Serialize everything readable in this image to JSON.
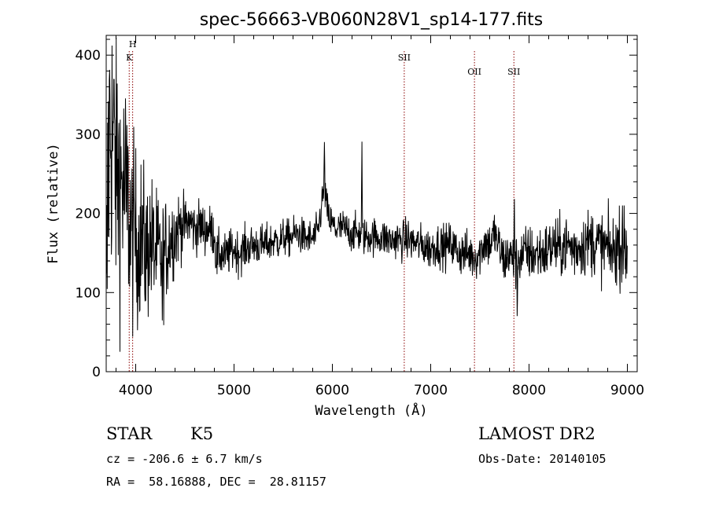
{
  "chart_data": {
    "type": "line",
    "title": "spec-56663-VB060N28V1_sp14-177.fits",
    "xlabel": "Wavelength (Å)",
    "ylabel": "Flux (relative)",
    "xlim": [
      3700,
      9100
    ],
    "ylim": [
      0,
      425
    ],
    "xticks": [
      4000,
      5000,
      6000,
      7000,
      8000,
      9000
    ],
    "yticks": [
      0,
      100,
      200,
      300,
      400
    ],
    "grid": false,
    "line_markers": [
      {
        "label": "K",
        "x": 3934
      },
      {
        "label": "H",
        "x": 3969
      },
      {
        "label": "SII",
        "x": 6731
      },
      {
        "label": "OII",
        "x": 7445
      },
      {
        "label": "SII",
        "x": 7846
      }
    ],
    "anchors": {
      "x": [
        3700,
        3720,
        3740,
        3760,
        3780,
        3800,
        3820,
        3850,
        3880,
        3900,
        3930,
        3960,
        3990,
        4020,
        4060,
        4100,
        4150,
        4200,
        4250,
        4300,
        4350,
        4400,
        4450,
        4500,
        4550,
        4600,
        4650,
        4700,
        4750,
        4800,
        4820,
        4850,
        4900,
        4950,
        5000,
        5050,
        5100,
        5150,
        5200,
        5250,
        5300,
        5350,
        5400,
        5450,
        5500,
        5550,
        5600,
        5650,
        5700,
        5750,
        5800,
        5850,
        5880,
        5900,
        5920,
        5940,
        5960,
        5980,
        6000,
        6050,
        6100,
        6150,
        6200,
        6250,
        6300,
        6350,
        6400,
        6450,
        6500,
        6550,
        6600,
        6650,
        6700,
        6750,
        6800,
        6850,
        6900,
        6950,
        7000,
        7050,
        7100,
        7150,
        7200,
        7250,
        7300,
        7350,
        7400,
        7450,
        7500,
        7550,
        7600,
        7650,
        7700,
        7750,
        7800,
        7850,
        7900,
        7950,
        8000,
        8050,
        8100,
        8150,
        8200,
        8250,
        8300,
        8350,
        8400,
        8450,
        8500,
        8550,
        8600,
        8650,
        8700,
        8750,
        8800,
        8850,
        8900,
        8950,
        9000
      ],
      "y": [
        10,
        260,
        320,
        300,
        280,
        260,
        250,
        240,
        230,
        220,
        200,
        170,
        180,
        160,
        175,
        150,
        165,
        150,
        145,
        150,
        170,
        175,
        185,
        185,
        190,
        180,
        185,
        180,
        180,
        175,
        140,
        150,
        145,
        150,
        155,
        150,
        155,
        158,
        160,
        160,
        160,
        162,
        165,
        165,
        170,
        168,
        172,
        175,
        170,
        168,
        168,
        175,
        200,
        220,
        230,
        210,
        195,
        190,
        185,
        180,
        182,
        178,
        175,
        175,
        172,
        170,
        172,
        170,
        170,
        168,
        165,
        168,
        165,
        168,
        165,
        162,
        160,
        158,
        155,
        160,
        160,
        158,
        162,
        155,
        150,
        150,
        148,
        145,
        150,
        165,
        160,
        175,
        155,
        140,
        150,
        135,
        145,
        150,
        150,
        148,
        150,
        150,
        155,
        160,
        155,
        160,
        160,
        155,
        158,
        160,
        165,
        165,
        160,
        158,
        155,
        150,
        160,
        155,
        150
      ]
    },
    "spikes": [
      {
        "x": 5920,
        "y": 300
      },
      {
        "x": 6300,
        "y": 300
      },
      {
        "x": 7850,
        "y": 235
      },
      {
        "x": 7880,
        "y": 60
      },
      {
        "x": 8950,
        "y": 210
      },
      {
        "x": 4270,
        "y": 60
      }
    ],
    "noise_profile": [
      [
        3700,
        110
      ],
      [
        3800,
        90
      ],
      [
        3900,
        75
      ],
      [
        4000,
        55
      ],
      [
        4300,
        35
      ],
      [
        4500,
        18
      ],
      [
        4800,
        15
      ],
      [
        5500,
        12
      ],
      [
        6500,
        12
      ],
      [
        7500,
        15
      ],
      [
        8000,
        18
      ],
      [
        8500,
        20
      ],
      [
        9000,
        24
      ]
    ]
  },
  "info": {
    "object_type": "STAR",
    "subclass": "K5",
    "survey": "LAMOST DR2",
    "cz": "cz = -206.6 ± 6.7 km/s",
    "obs_date": "Obs-Date: 20140105",
    "radec": "RA =  58.16888, DEC =  28.81157"
  },
  "colors": {
    "spectrum": "#000000",
    "marker": "#8b0000",
    "axes": "#000000"
  }
}
